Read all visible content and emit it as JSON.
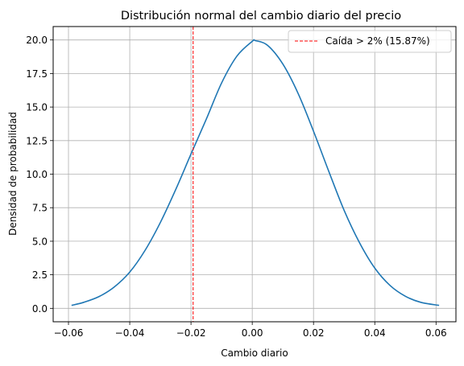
{
  "chart_data": {
    "type": "line",
    "title": "Distribución normal del cambio diario del precio",
    "xlabel": "Cambio diario",
    "ylabel": "Densidad de probabilidad",
    "xlim": [
      -0.065,
      0.0665
    ],
    "ylim": [
      -1.0,
      21.0
    ],
    "xticks": [
      -0.06,
      -0.04,
      -0.02,
      0.0,
      0.02,
      0.04,
      0.06
    ],
    "xtick_labels": [
      "−0.06",
      "−0.04",
      "−0.02",
      "0.00",
      "0.02",
      "0.04",
      "0.06"
    ],
    "yticks": [
      0.0,
      2.5,
      5.0,
      7.5,
      10.0,
      12.5,
      15.0,
      17.5,
      20.0
    ],
    "ytick_labels": [
      "0.0",
      "2.5",
      "5.0",
      "7.5",
      "10.0",
      "12.5",
      "15.0",
      "17.5",
      "20.0"
    ],
    "grid": true,
    "legend_position": "top-right",
    "series": [
      {
        "color": "#1f77b4",
        "x": [
          -0.059,
          -0.055,
          -0.05,
          -0.045,
          -0.04,
          -0.035,
          -0.03,
          -0.025,
          -0.02,
          -0.015,
          -0.01,
          -0.005,
          0.0,
          0.001,
          0.005,
          0.01,
          0.015,
          0.02,
          0.025,
          0.03,
          0.035,
          0.04,
          0.045,
          0.05,
          0.055,
          0.061
        ],
        "y": [
          0.22,
          0.45,
          0.88,
          1.6,
          2.7,
          4.32,
          6.4,
          8.85,
          11.5,
          14.1,
          16.8,
          18.8,
          19.9,
          19.95,
          19.6,
          18.2,
          16.0,
          13.2,
          10.2,
          7.3,
          4.9,
          3.0,
          1.7,
          0.9,
          0.45,
          0.22
        ]
      }
    ],
    "vlines": [
      {
        "x": -0.0193,
        "color": "#ff0000",
        "style": "dashed",
        "label": "Caída > 2% (15.87%)"
      }
    ]
  }
}
